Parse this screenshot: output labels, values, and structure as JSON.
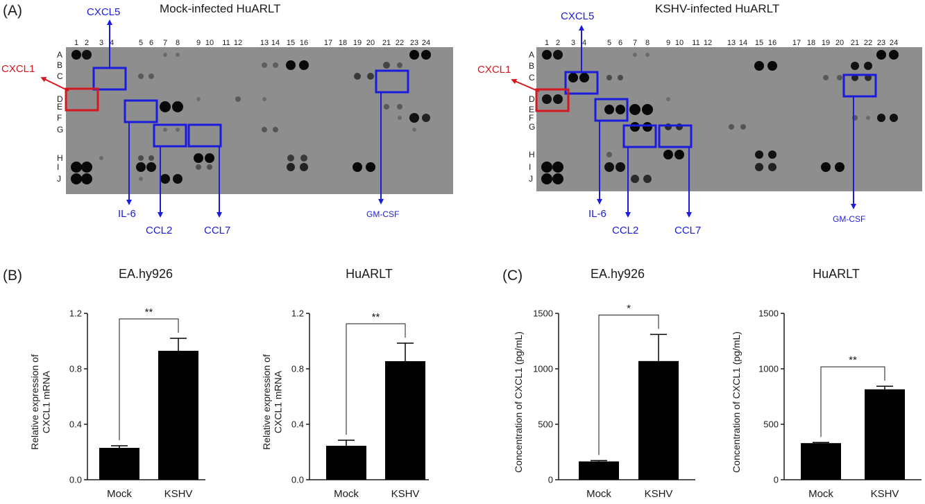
{
  "panel_labels": {
    "a": "(A)",
    "b": "(B)",
    "c": "(C)"
  },
  "arrays": [
    {
      "title": "Mock-infected HuARLT",
      "columns": [
        "1",
        "2",
        "3",
        "4",
        "5",
        "6",
        "7",
        "8",
        "9",
        "10",
        "11",
        "12",
        "13",
        "14",
        "15",
        "16",
        "17",
        "18",
        "19",
        "20",
        "21",
        "22",
        "23",
        "24"
      ],
      "rows": [
        "A",
        "B",
        "C",
        "D",
        "E",
        "F",
        "G",
        "H",
        "I",
        "J"
      ],
      "callouts": {
        "cxcl5": "CXCL5",
        "cxcl1": "CXCL1",
        "il6": "IL-6",
        "ccl2": "CCL2",
        "ccl7": "CCL7",
        "gmcsf": "GM-CSF"
      }
    },
    {
      "title": "KSHV-infected HuARLT",
      "columns": [
        "1",
        "2",
        "3",
        "4",
        "5",
        "6",
        "7",
        "8",
        "9",
        "10",
        "11",
        "12",
        "13",
        "14",
        "15",
        "16",
        "17",
        "18",
        "19",
        "20",
        "21",
        "22",
        "23",
        "24"
      ],
      "rows": [
        "A",
        "B",
        "C",
        "D",
        "E",
        "F",
        "G",
        "H",
        "I",
        "J"
      ],
      "callouts": {
        "cxcl5": "CXCL5",
        "cxcl1": "CXCL1",
        "il6": "IL-6",
        "ccl2": "CCL2",
        "ccl7": "CCL7",
        "gmcsf": "GM-CSF"
      }
    }
  ],
  "colors": {
    "highlight_blue": "#1b1bdc",
    "highlight_red": "#d4181f",
    "membrane": "#8e8e8e",
    "bar": "#000000"
  },
  "chart_data": [
    {
      "type": "bar",
      "panel": "(B)",
      "title": "EA.hy926",
      "categories": [
        "Mock",
        "KSHV"
      ],
      "values": [
        0.23,
        0.93
      ],
      "errors": [
        0.015,
        0.09
      ],
      "ylabel": "Relative expression of CXCL1 mRNA",
      "ylim": [
        0,
        1.2
      ],
      "yticks": [
        "0.0",
        "0.4",
        "0.8",
        "1.2"
      ],
      "significance": "**"
    },
    {
      "type": "bar",
      "panel": "(B)",
      "title": "HuARLT",
      "categories": [
        "Mock",
        "KSHV"
      ],
      "values": [
        0.245,
        0.855
      ],
      "errors": [
        0.04,
        0.13
      ],
      "ylabel": "Relative expression of CXCL1 mRNA",
      "ylim": [
        0,
        1.2
      ],
      "yticks": [
        "0.0",
        "0.4",
        "0.8",
        "1.2"
      ],
      "significance": "**"
    },
    {
      "type": "bar",
      "panel": "(C)",
      "title": "EA.hy926",
      "categories": [
        "Mock",
        "KSHV"
      ],
      "values": [
        165,
        1070
      ],
      "errors": [
        8,
        240
      ],
      "ylabel": "Concentration of CXCL1 (pg/mL)",
      "ylim": [
        0,
        1500
      ],
      "yticks": [
        "0",
        "500",
        "1000",
        "1500"
      ],
      "significance": "*"
    },
    {
      "type": "bar",
      "panel": "(C)",
      "title": "HuARLT",
      "categories": [
        "Mock",
        "KSHV"
      ],
      "values": [
        330,
        815
      ],
      "errors": [
        6,
        28
      ],
      "ylabel": "Concentration of CXCL1 (pg/mL)",
      "ylim": [
        0,
        1500
      ],
      "yticks": [
        "0",
        "500",
        "1000",
        "1500"
      ],
      "significance": "**"
    }
  ]
}
